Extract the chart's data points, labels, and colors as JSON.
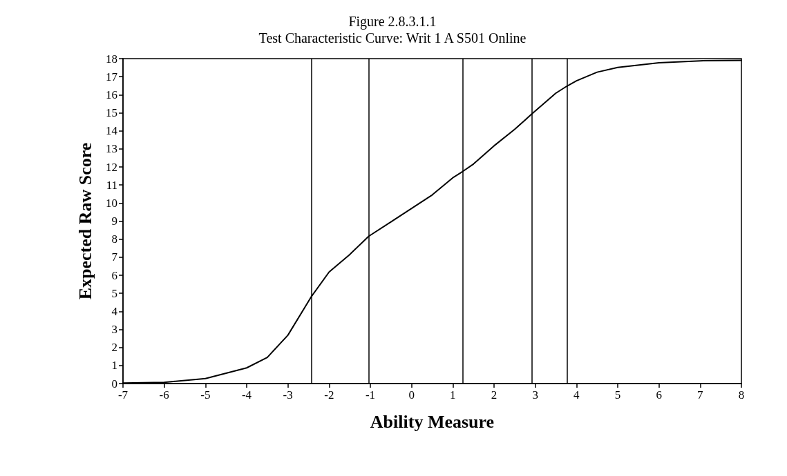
{
  "chart_data": {
    "type": "line",
    "title": "Figure 2.8.3.1.1",
    "subtitle": "Test Characteristic Curve: Writ 1 A S501 Online",
    "xlabel": "Ability Measure",
    "ylabel": "Expected Raw Score",
    "x": [
      -7,
      -6,
      -5,
      -4,
      -3.5,
      -3,
      -2.5,
      -2.43,
      -2,
      -1.5,
      -1.04,
      -0.5,
      0,
      0.5,
      1,
      1.24,
      1.5,
      2,
      2.5,
      2.91,
      3.5,
      3.77,
      4,
      4.5,
      5,
      6,
      7,
      8
    ],
    "series": [
      {
        "color": "#000000",
        "values": [
          0.03,
          0.07,
          0.28,
          0.87,
          1.45,
          2.68,
          4.56,
          4.82,
          6.18,
          7.15,
          8.16,
          8.96,
          9.7,
          10.45,
          11.4,
          11.75,
          12.16,
          13.17,
          14.08,
          14.92,
          16.09,
          16.48,
          16.77,
          17.25,
          17.51,
          17.77,
          17.88,
          17.9
        ]
      }
    ],
    "xlim": [
      -7,
      8
    ],
    "xticks": [
      -7,
      -6,
      -5,
      -4,
      -3,
      -2,
      -1,
      0,
      1,
      2,
      3,
      4,
      5,
      6,
      7,
      8
    ],
    "ylim": [
      0,
      18
    ],
    "yticks": [
      0,
      1,
      2,
      3,
      4,
      5,
      6,
      7,
      8,
      9,
      10,
      11,
      12,
      13,
      14,
      15,
      16,
      17,
      18
    ],
    "ref_lines": [
      {
        "axis": "x",
        "value": -2.43,
        "color": "#000000"
      },
      {
        "axis": "x",
        "value": -1.04,
        "color": "#000000"
      },
      {
        "axis": "x",
        "value": 1.24,
        "color": "#000000"
      },
      {
        "axis": "x",
        "value": 2.91,
        "color": "#000000"
      },
      {
        "axis": "x",
        "value": 3.77,
        "color": "#000000"
      }
    ],
    "grid": false,
    "marker": "none",
    "line_style": "solid"
  }
}
